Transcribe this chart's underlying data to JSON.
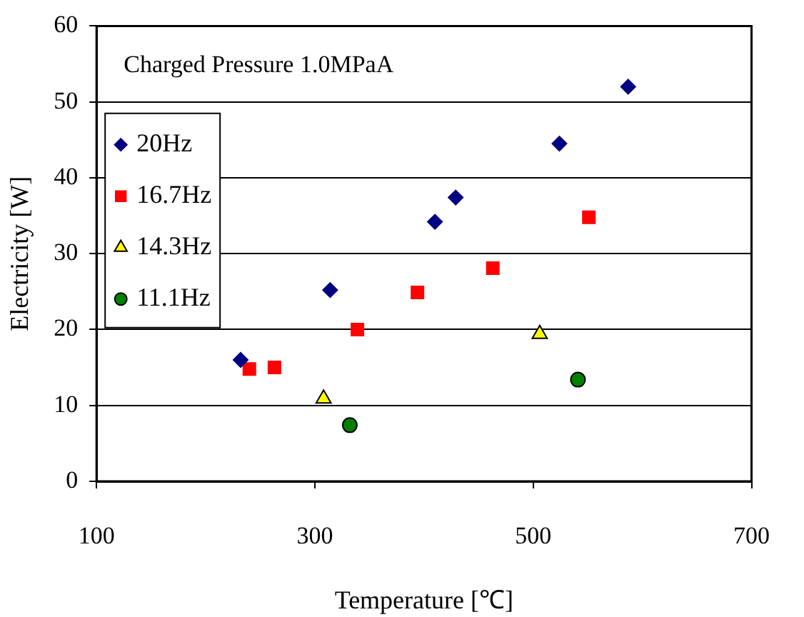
{
  "chart_data": {
    "type": "scatter",
    "xlabel": "Temperature [℃]",
    "ylabel": "Electricity [W]",
    "annotations": [
      "Charged Pressure 1.0MPaA"
    ],
    "xlim": [
      100,
      700
    ],
    "xticks": [
      100,
      300,
      500,
      700
    ],
    "ylim": [
      0,
      60
    ],
    "yticks": [
      0,
      10,
      20,
      30,
      40,
      50,
      60
    ],
    "grid": "y",
    "legend": "top left",
    "series": [
      {
        "name": "20Hz",
        "color": "#000080",
        "marker": "diamond",
        "x": [
          232,
          314,
          410,
          429,
          524,
          587
        ],
        "values": [
          16.0,
          25.2,
          34.2,
          37.4,
          44.5,
          52.0
        ]
      },
      {
        "name": "16.7Hz",
        "color": "#ff0000",
        "marker": "square",
        "x": [
          240,
          263,
          339,
          394,
          463,
          551
        ],
        "values": [
          14.8,
          15.0,
          20.0,
          24.9,
          28.1,
          34.8
        ]
      },
      {
        "name": "14.3Hz",
        "color": "#ffff00",
        "marker": "triangle",
        "x": [
          308,
          506
        ],
        "values": [
          10.9,
          19.4
        ]
      },
      {
        "name": "11.1Hz",
        "color": "#008000",
        "marker": "circle",
        "x": [
          332,
          541
        ],
        "values": [
          7.4,
          13.4
        ]
      }
    ]
  }
}
